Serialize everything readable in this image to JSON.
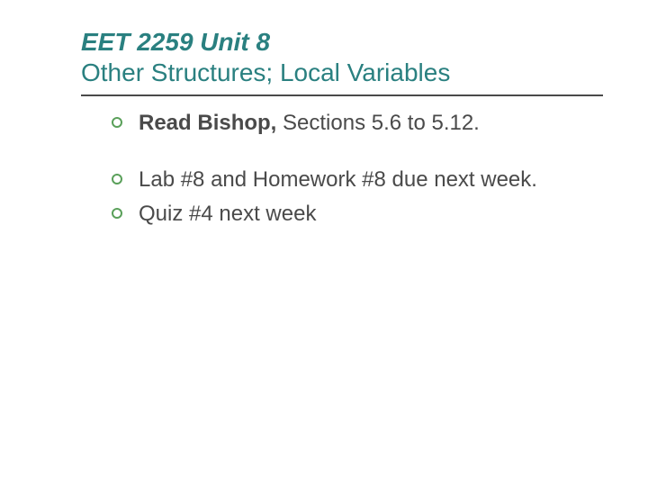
{
  "title": {
    "line1": "EET 2259 Unit 8",
    "line2": "Other Structures; Local Variables",
    "color": "#2a8080",
    "fontsize": 28
  },
  "divider": {
    "color": "#4a4a4a",
    "thickness": 2
  },
  "bullets": [
    {
      "bold_part": "Read Bishop, ",
      "rest": "Sections 5.6 to 5.12.",
      "gap_after": true
    },
    {
      "bold_part": "",
      "rest": "Lab #8 and Homework #8 due next week.",
      "gap_after": false
    },
    {
      "bold_part": "",
      "rest": "Quiz #4 next week",
      "gap_after": false
    }
  ],
  "bullet_style": {
    "marker_color": "#5aa05a",
    "text_color": "#4a4a4a",
    "fontsize": 24
  },
  "background_color": "#ffffff"
}
